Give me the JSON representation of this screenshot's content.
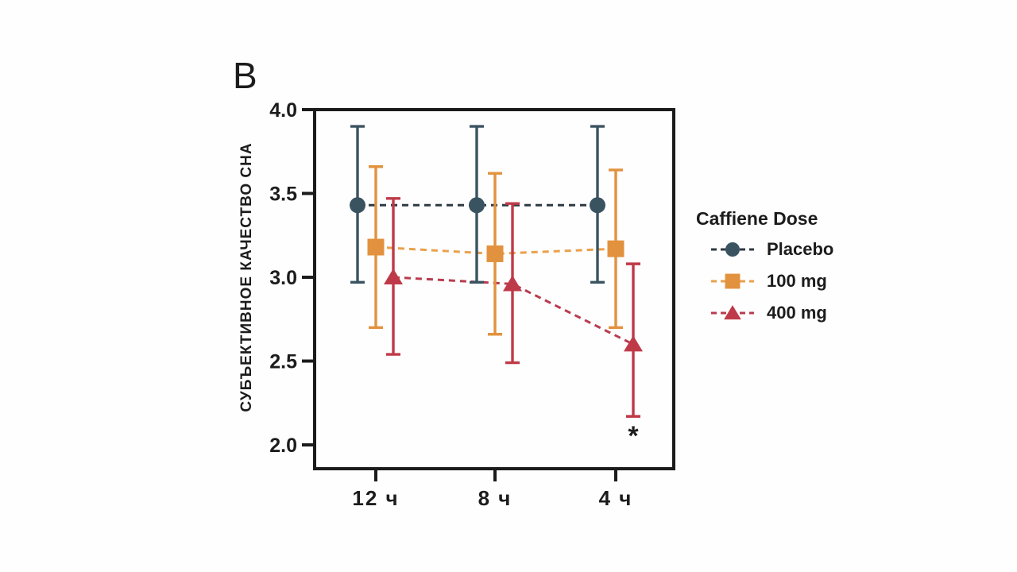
{
  "chart_data": {
    "type": "line",
    "panel_label": "B",
    "title": "",
    "ylabel": "СУБЪЕКТИВНОЕ КАЧЕСТВО СНА",
    "xlabel": "",
    "categories": [
      "12 ч",
      "8 ч",
      "4 ч"
    ],
    "ylim": [
      2.0,
      4.0
    ],
    "yticks": [
      "4.0",
      "3.5",
      "3.0",
      "2.5",
      "2.0"
    ],
    "ytick_values": [
      4.0,
      3.5,
      3.0,
      2.5,
      2.0
    ],
    "grid": false,
    "line_style": "dashed",
    "series": [
      {
        "name": "Placebo",
        "marker": "circle",
        "marker_color": "#3a5361",
        "line_color": "#2e3a43",
        "values": [
          3.43,
          3.43,
          3.43
        ],
        "err_high": [
          3.9,
          3.9,
          3.9
        ],
        "err_low": [
          2.97,
          2.97,
          2.97
        ]
      },
      {
        "name": "100 mg",
        "marker": "square",
        "marker_color": "#e2923f",
        "line_color": "#eaa04c",
        "values": [
          3.18,
          3.14,
          3.17
        ],
        "err_high": [
          3.66,
          3.62,
          3.64
        ],
        "err_low": [
          2.7,
          2.66,
          2.7
        ]
      },
      {
        "name": "400 mg",
        "marker": "triangle",
        "marker_color": "#bf3a48",
        "line_color": "#b83c4e",
        "values": [
          3.0,
          2.96,
          2.6
        ],
        "err_high": [
          3.47,
          3.44,
          3.08
        ],
        "err_low": [
          2.54,
          2.49,
          2.17
        ]
      }
    ],
    "legend": {
      "title": "Caffiene Dose",
      "position": "right"
    },
    "annotation": {
      "text": "*",
      "series_index": 2,
      "category_index": 2,
      "position": "below-error-bar"
    },
    "axis_color": "#1b1b1b"
  }
}
